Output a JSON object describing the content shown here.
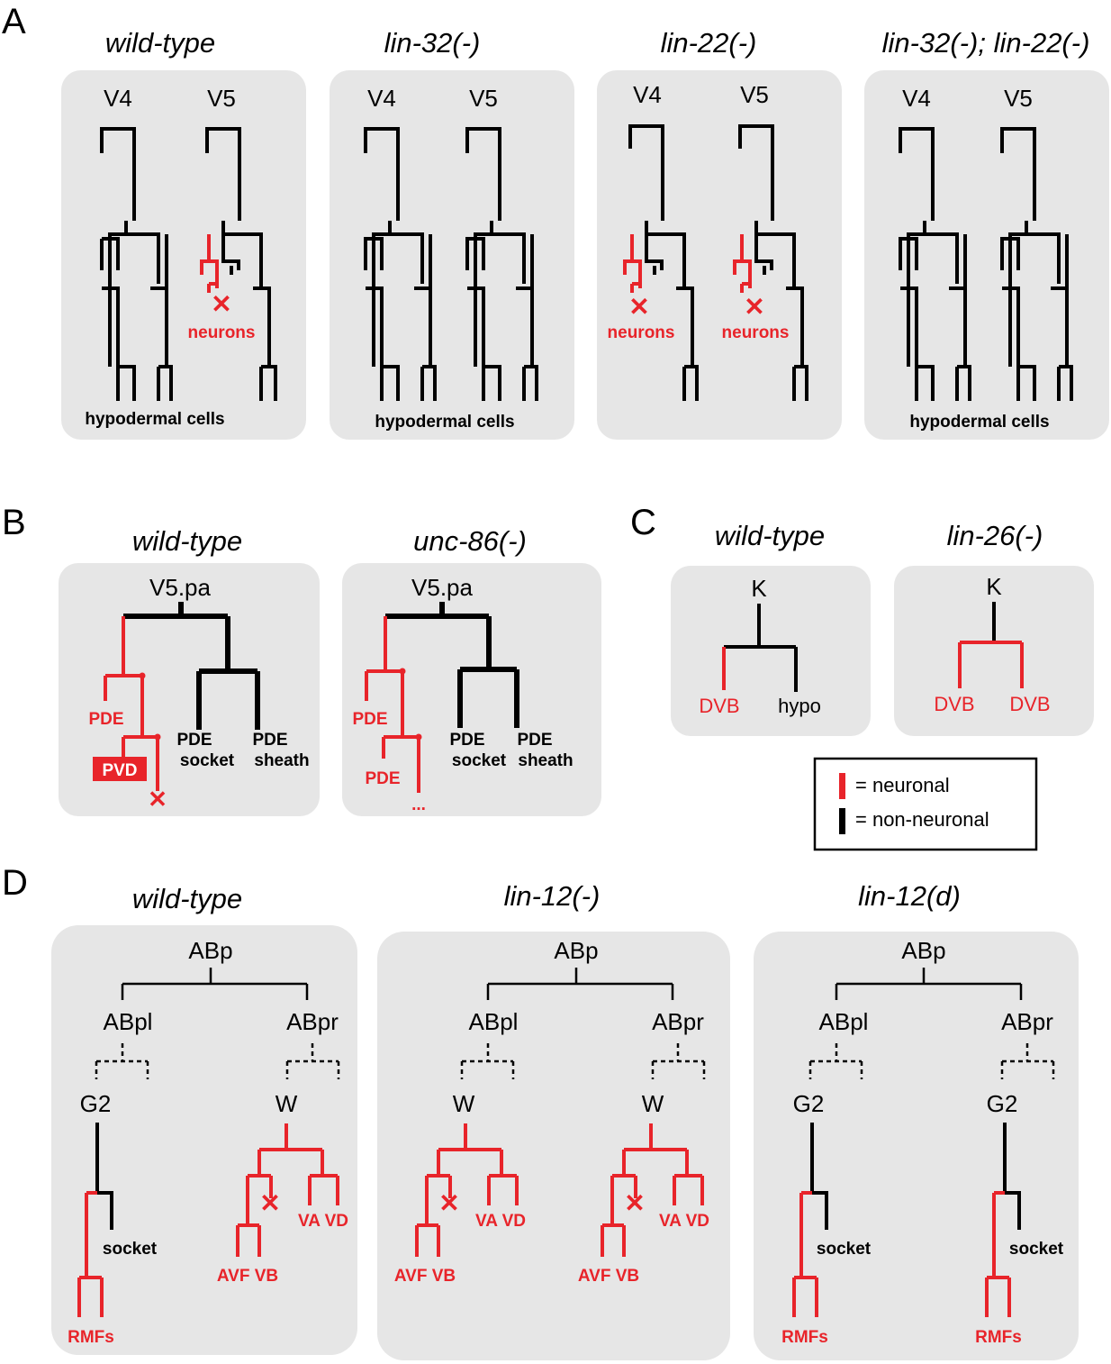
{
  "colors": {
    "neuronal": "#e8242a",
    "non_neuronal": "#000000",
    "panel": "#e6e6e6"
  },
  "sections": {
    "a": "A",
    "b": "B",
    "c": "C",
    "d": "D"
  },
  "panel_a": {
    "titles": [
      "wild-type",
      "lin-32(-)",
      "lin-22(-)",
      "lin-32(-); lin-22(-)"
    ],
    "cells": {
      "v4": "V4",
      "v5": "V5"
    },
    "neurons": "neurons",
    "hypodermal": "hypodermal cells"
  },
  "panel_b": {
    "titles": [
      "wild-type",
      "unc-86(-)"
    ],
    "root": "V5.pa",
    "pde": "PDE",
    "pvd": "PVD",
    "socket": "socket",
    "sheath": "sheath",
    "ellipsis": "..."
  },
  "panel_c": {
    "titles": [
      "wild-type",
      "lin-26(-)"
    ],
    "root": "K",
    "dvb": "DVB",
    "hypo": "hypo"
  },
  "legend": {
    "neuronal": "= neuronal",
    "non_neuronal": "= non-neuronal"
  },
  "panel_d": {
    "titles": [
      "wild-type",
      "lin-12(-)",
      "lin-12(d)"
    ],
    "abp": "ABp",
    "abpl": "ABpl",
    "abpr": "ABpr",
    "g2": "G2",
    "w": "W",
    "socket": "socket",
    "rmfs": "RMFs",
    "avf_vb": "AVF VB",
    "va_vd": "VA VD"
  }
}
